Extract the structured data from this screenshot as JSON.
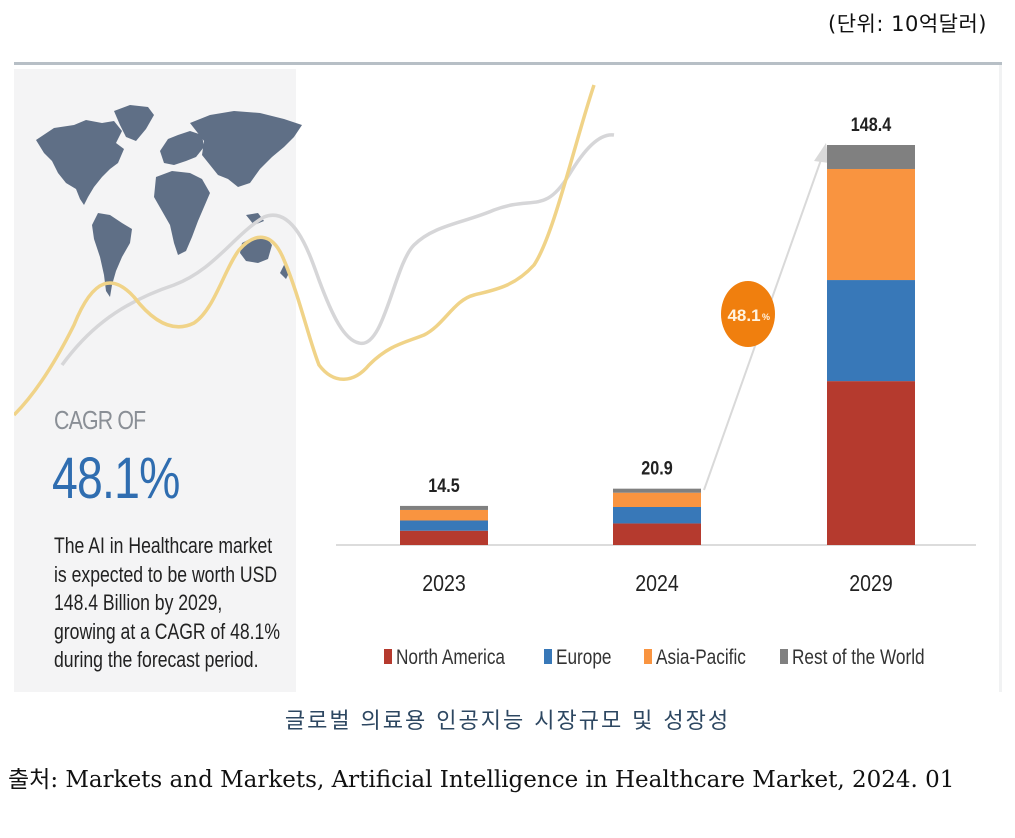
{
  "unit_label": "(단위: 10억달러)",
  "infographic": {
    "cagr_label": "CAGR OF",
    "cagr_value": "48.1%",
    "blurb_lines": [
      "The AI in Healthcare market",
      "is expected to be worth USD",
      "148.4 Billion by 2029,",
      "growing at a CAGR of 48.1%",
      "during the forecast period."
    ],
    "growth_badge": "48.1",
    "growth_badge_suffix": "%"
  },
  "colors": {
    "north_america": "#b53a2e",
    "europe": "#3878b8",
    "asia_pacific": "#f99440",
    "rest_of_world": "#808080",
    "badge": "#f07f0e",
    "cagr_text": "#2f6db0",
    "map": "#5f6f86",
    "curve_gold": "#f0d388",
    "curve_gray": "#d6d6d8"
  },
  "chart_data": {
    "type": "bar",
    "stacked": true,
    "title": "",
    "xlabel": "",
    "ylabel": "",
    "unit": "USD Billion",
    "categories": [
      "2023",
      "2024",
      "2029"
    ],
    "totals": [
      14.5,
      20.9,
      148.4
    ],
    "total_labels": [
      "14.5",
      "20.9",
      "148.4"
    ],
    "series": [
      {
        "name": "North America",
        "color": "#b53a2e",
        "values": [
          5.3,
          8.0,
          60.8
        ]
      },
      {
        "name": "Europe",
        "color": "#3878b8",
        "values": [
          3.8,
          6.1,
          37.5
        ]
      },
      {
        "name": "Asia-Pacific",
        "color": "#f99440",
        "values": [
          3.9,
          5.3,
          41.2
        ]
      },
      {
        "name": "Rest of the World",
        "color": "#808080",
        "values": [
          1.5,
          1.5,
          8.9
        ]
      }
    ],
    "ylim": [
      0,
      148.4
    ],
    "grid": false,
    "legend": "bottom",
    "annotation": "CAGR 48.1%"
  },
  "caption": "글로벌 의료용 인공지능 시장규모 및 성장성",
  "source": "출처: Markets and Markets, Artificial Intelligence in Healthcare Market, 2024. 01"
}
